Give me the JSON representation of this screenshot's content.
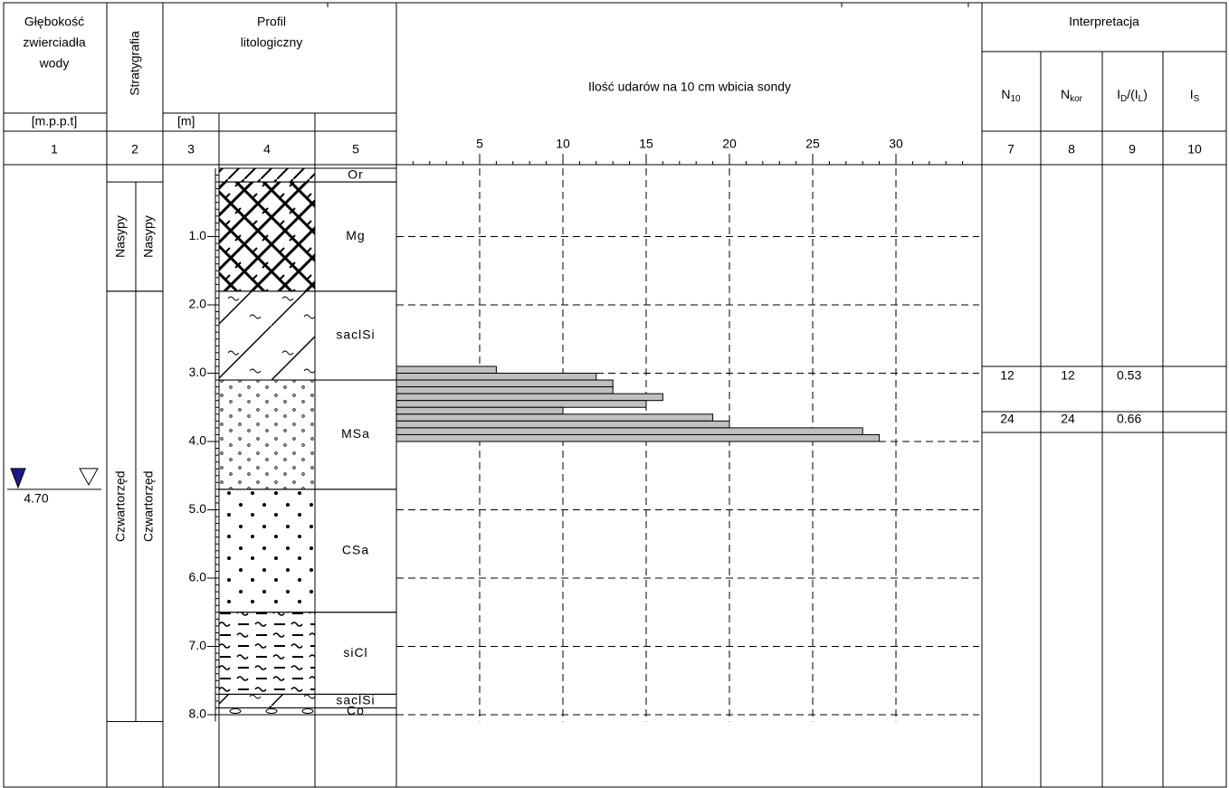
{
  "header": {
    "water_depth": [
      "Głębokość",
      "zwierciadła",
      "wody"
    ],
    "water_depth_unit": "[m.p.p.t]",
    "stratigraphy": "Stratygrafia",
    "profile": [
      "Profil",
      "litologiczny"
    ],
    "depth_unit": "[m]",
    "interpretation": "Interpretacja",
    "interpretation_columns": [
      [
        {
          "text": "N"
        },
        {
          "sub": "10"
        }
      ],
      [
        {
          "text": "N"
        },
        {
          "sub": "kor"
        }
      ],
      [
        {
          "text": "I"
        },
        {
          "sub": "D"
        },
        {
          "text": "/(I"
        },
        {
          "sub": "L"
        },
        {
          "text": ")"
        }
      ],
      [
        {
          "text": "I"
        },
        {
          "sub": "S"
        }
      ]
    ]
  },
  "column_numbers": [
    "1",
    "2",
    "3",
    "4",
    "5",
    "7",
    "8",
    "9",
    "10"
  ],
  "water_level": {
    "value": 4.7,
    "label": "4.70"
  },
  "stratigraphy": [
    [
      {
        "name": "Nasypy",
        "top": 0.2,
        "bottom": 1.8
      },
      {
        "name": "Czwartorzęd",
        "top": 1.8,
        "bottom": 8.1
      }
    ],
    [
      {
        "name": "Nasypy",
        "top": 0.2,
        "bottom": 1.8
      },
      {
        "name": "Czwartorzęd",
        "top": 1.8,
        "bottom": 8.1
      }
    ]
  ],
  "lithology": [
    {
      "code": "Or",
      "top": 0,
      "bottom": 0.2
    },
    {
      "code": "Mg",
      "top": 0.2,
      "bottom": 1.8
    },
    {
      "code": "saclSi",
      "top": 1.8,
      "bottom": 3.1
    },
    {
      "code": "MSa",
      "top": 3.1,
      "bottom": 4.7
    },
    {
      "code": "CSa",
      "top": 4.7,
      "bottom": 6.5
    },
    {
      "code": "siCl",
      "top": 6.5,
      "bottom": 7.7
    },
    {
      "code": "saclSi",
      "top": 7.7,
      "bottom": 7.9
    },
    {
      "code": "Co",
      "top": 7.9,
      "bottom": 8.0
    }
  ],
  "depth_axis": {
    "ticks": [
      {
        "value": 1,
        "label": "1.0"
      },
      {
        "value": 2,
        "label": "2.0"
      },
      {
        "value": 3,
        "label": "3.0"
      },
      {
        "value": 4,
        "label": "4.0"
      },
      {
        "value": 5,
        "label": "5.0"
      },
      {
        "value": 6,
        "label": "6.0"
      },
      {
        "value": 7,
        "label": "7.0"
      },
      {
        "value": 8,
        "label": "8.0"
      }
    ]
  },
  "chart_data": {
    "type": "bar",
    "title": "Ilość udarów na 10 cm wbicia sondy",
    "depth_edges": [
      2.9,
      3.0,
      3.1,
      3.2,
      3.3,
      3.4,
      3.5,
      3.6,
      3.7,
      3.8,
      3.9,
      4.0
    ],
    "values": [
      6,
      12,
      13,
      13,
      16,
      15,
      10,
      19,
      20,
      28,
      29
    ],
    "color": "#c0c0c0",
    "xlim": [
      0,
      35
    ],
    "xticks": [
      5,
      10,
      15,
      20,
      25,
      30
    ],
    "ylim": [
      0,
      9
    ],
    "grid": true
  },
  "interpretation": {
    "rows": [
      [
        12,
        12,
        0.53
      ],
      [
        24,
        24,
        0.66
      ]
    ]
  }
}
